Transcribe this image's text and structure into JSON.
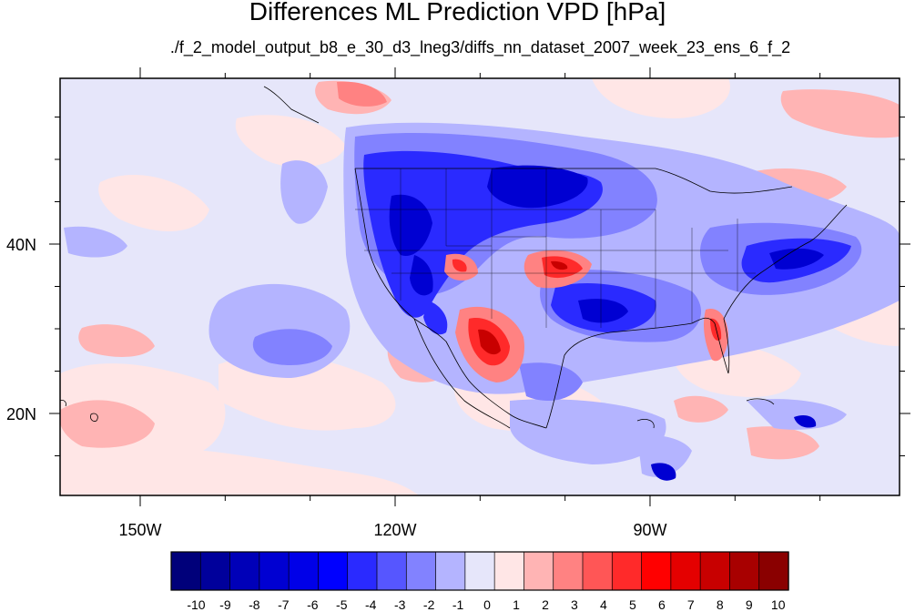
{
  "title": "Differences ML Prediction VPD [hPa]",
  "subtitle": "./f_2_model_output_b8_e_30_d3_lneg3/diffs_nn_dataset_2007_week_23_ens_6_f_2",
  "axes": {
    "x_ticks": [
      "150W",
      "120W",
      "90W"
    ],
    "y_ticks": [
      "40N",
      "20N"
    ]
  },
  "colorbar": {
    "labels": [
      "-10",
      "-9",
      "-8",
      "-7",
      "-6",
      "-5",
      "-4",
      "-3",
      "-2",
      "-1",
      "0",
      "1",
      "2",
      "3",
      "4",
      "5",
      "6",
      "7",
      "8",
      "9",
      "10"
    ],
    "colors": [
      "#00007a",
      "#00009b",
      "#0000b8",
      "#0000d2",
      "#0000e8",
      "#0000ff",
      "#2a2aff",
      "#5656ff",
      "#8282ff",
      "#b4b4ff",
      "#e6e6fa",
      "#ffe6e6",
      "#ffb4b4",
      "#ff8282",
      "#ff5656",
      "#ff2a2a",
      "#ff0000",
      "#e40000",
      "#c80000",
      "#a80000",
      "#8a0000"
    ]
  },
  "colors": {
    "background_field": "#e6e6fa"
  }
}
